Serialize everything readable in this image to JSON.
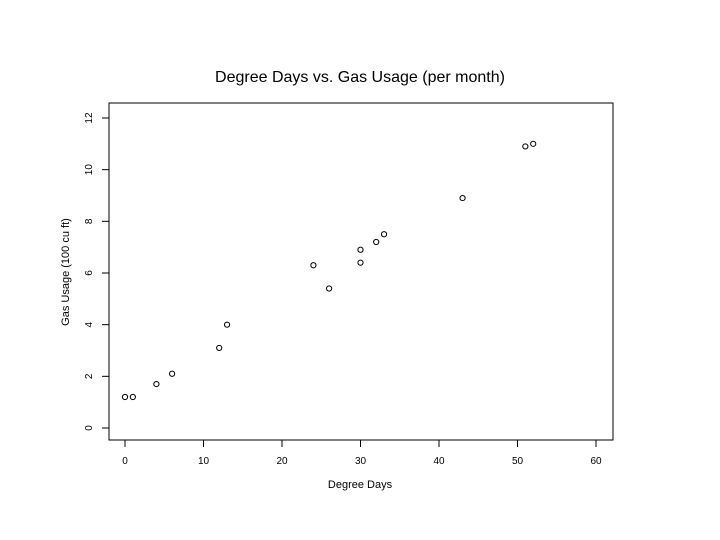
{
  "chart_data": {
    "type": "scatter",
    "title": "Degree Days vs. Gas Usage (per month)",
    "xlabel": "Degree Days",
    "ylabel": "Gas Usage (100 cu ft)",
    "xlim": [
      0,
      60
    ],
    "ylim": [
      0,
      12
    ],
    "xticks": [
      0,
      10,
      20,
      30,
      40,
      50,
      60
    ],
    "yticks": [
      0,
      2,
      4,
      6,
      8,
      10,
      12
    ],
    "grid": false,
    "marker": "open-circle",
    "points": [
      {
        "x": 0,
        "y": 1.2
      },
      {
        "x": 1,
        "y": 1.2
      },
      {
        "x": 4,
        "y": 1.7
      },
      {
        "x": 6,
        "y": 2.1
      },
      {
        "x": 12,
        "y": 3.1
      },
      {
        "x": 13,
        "y": 4.0
      },
      {
        "x": 24,
        "y": 6.3
      },
      {
        "x": 26,
        "y": 5.4
      },
      {
        "x": 30,
        "y": 6.9
      },
      {
        "x": 30,
        "y": 6.4
      },
      {
        "x": 32,
        "y": 7.2
      },
      {
        "x": 33,
        "y": 7.5
      },
      {
        "x": 43,
        "y": 8.9
      },
      {
        "x": 51,
        "y": 10.9
      },
      {
        "x": 52,
        "y": 11.0
      }
    ]
  }
}
